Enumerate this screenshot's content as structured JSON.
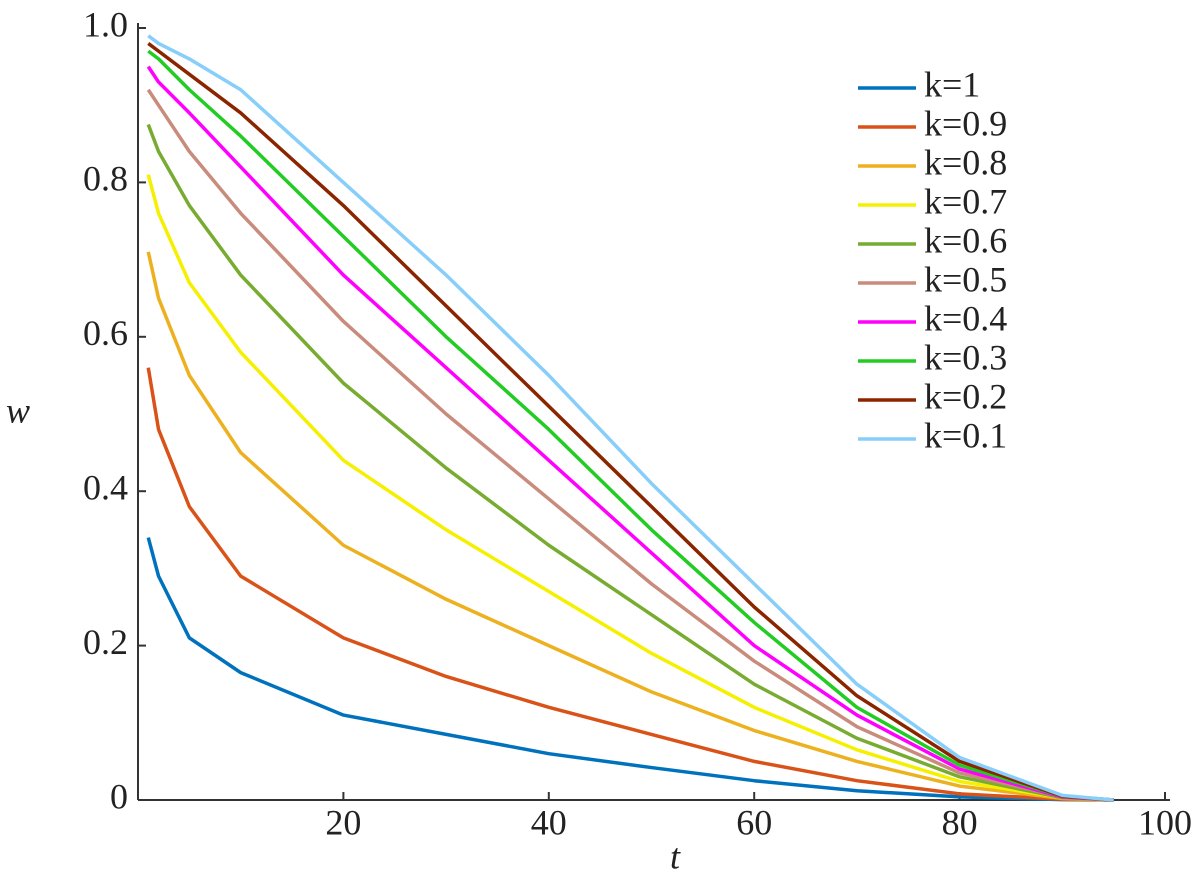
{
  "chart_data": {
    "type": "line",
    "x_label": "t",
    "y_label": "w",
    "x": [
      1,
      2,
      5,
      10,
      20,
      30,
      40,
      50,
      60,
      70,
      80,
      90,
      95
    ],
    "xlim": [
      0,
      100
    ],
    "xticks": [
      20,
      40,
      60,
      80,
      100
    ],
    "ylim": [
      0,
      1
    ],
    "yticks": [
      0,
      0.2,
      0.4,
      0.6,
      0.8,
      {
        "value": 1,
        "label": "1.0"
      }
    ],
    "legend": "upper right",
    "series": [
      {
        "name": "k=1",
        "color": "#0072bd",
        "values": [
          0.34,
          0.29,
          0.21,
          0.165,
          0.11,
          0.085,
          0.06,
          0.042,
          0.025,
          0.012,
          0.004,
          0.0005,
          0
        ]
      },
      {
        "name": "k=0.9",
        "color": "#d95319",
        "values": [
          0.56,
          0.48,
          0.38,
          0.29,
          0.21,
          0.16,
          0.12,
          0.085,
          0.05,
          0.025,
          0.008,
          0.001,
          0
        ]
      },
      {
        "name": "k=0.8",
        "color": "#edb120",
        "values": [
          0.71,
          0.65,
          0.55,
          0.45,
          0.33,
          0.26,
          0.2,
          0.14,
          0.09,
          0.05,
          0.018,
          0.002,
          0
        ]
      },
      {
        "name": "k=0.7",
        "color": "#f5f000",
        "values": [
          0.81,
          0.76,
          0.67,
          0.58,
          0.44,
          0.35,
          0.27,
          0.19,
          0.12,
          0.065,
          0.024,
          0.003,
          0
        ]
      },
      {
        "name": "k=0.6",
        "color": "#77ac30",
        "values": [
          0.875,
          0.84,
          0.77,
          0.68,
          0.54,
          0.43,
          0.33,
          0.24,
          0.15,
          0.08,
          0.03,
          0.003,
          0
        ]
      },
      {
        "name": "k=0.5",
        "color": "#c98b7c",
        "values": [
          0.92,
          0.9,
          0.84,
          0.76,
          0.62,
          0.5,
          0.39,
          0.28,
          0.18,
          0.095,
          0.035,
          0.004,
          0
        ]
      },
      {
        "name": "k=0.4",
        "color": "#ff00ff",
        "values": [
          0.95,
          0.93,
          0.89,
          0.82,
          0.68,
          0.56,
          0.44,
          0.32,
          0.2,
          0.11,
          0.04,
          0.004,
          0
        ]
      },
      {
        "name": "k=0.3",
        "color": "#22cc22",
        "values": [
          0.97,
          0.96,
          0.92,
          0.86,
          0.73,
          0.6,
          0.48,
          0.35,
          0.23,
          0.12,
          0.045,
          0.005,
          0
        ]
      },
      {
        "name": "k=0.2",
        "color": "#8b2500",
        "values": [
          0.98,
          0.97,
          0.94,
          0.89,
          0.77,
          0.64,
          0.51,
          0.38,
          0.25,
          0.135,
          0.05,
          0.005,
          0
        ]
      },
      {
        "name": "k=0.1",
        "color": "#87cefa",
        "values": [
          0.99,
          0.98,
          0.96,
          0.92,
          0.8,
          0.68,
          0.55,
          0.41,
          0.28,
          0.15,
          0.055,
          0.006,
          0
        ]
      }
    ]
  }
}
